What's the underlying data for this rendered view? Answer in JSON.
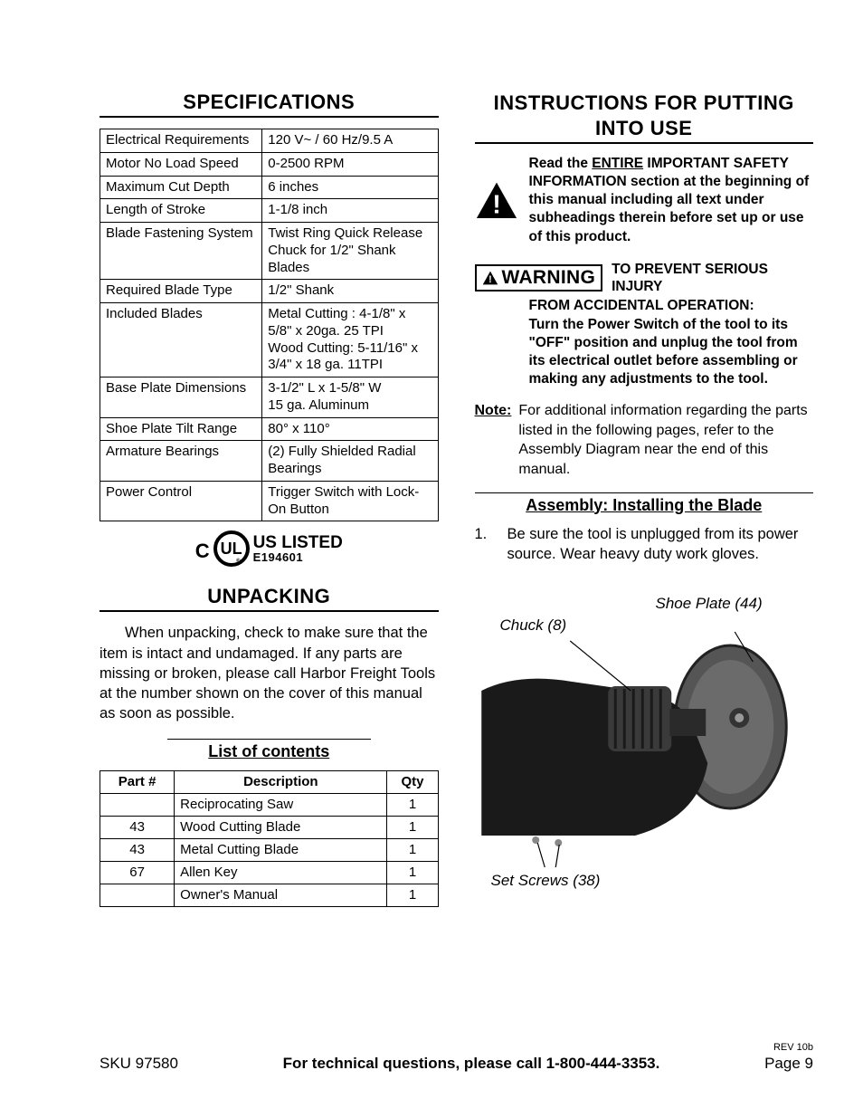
{
  "left": {
    "spec_title": "SPECIFICATIONS",
    "spec_rows": [
      {
        "k": "Electrical Requirements",
        "v": "120 V~ / 60 Hz/9.5 A"
      },
      {
        "k": "Motor No Load Speed",
        "v": "0-2500 RPM"
      },
      {
        "k": "Maximum Cut Depth",
        "v": "6 inches"
      },
      {
        "k": "Length of Stroke",
        "v": "1-1/8 inch"
      },
      {
        "k": "Blade Fastening System",
        "v": "Twist Ring Quick Release Chuck for 1/2\" Shank Blades"
      },
      {
        "k": "Required Blade Type",
        "v": "1/2\" Shank"
      },
      {
        "k": "Included Blades",
        "v": "Metal Cutting : 4-1/8\" x 5/8\" x 20ga. 25 TPI\nWood Cutting: 5-11/16\" x 3/4\" x 18 ga. 11TPI"
      },
      {
        "k": "Base Plate Dimensions",
        "v": "3-1/2\" L x 1-5/8\" W\n15 ga. Aluminum"
      },
      {
        "k": "Shoe Plate Tilt Range",
        "v": "80° x 110°"
      },
      {
        "k": "Armature Bearings",
        "v": "(2) Fully Shielded Radial Bearings"
      },
      {
        "k": "Power Control",
        "v": "Trigger Switch with Lock-On Button"
      }
    ],
    "ul": {
      "c": "C",
      "mark": "UL",
      "listed": "US LISTED",
      "num": "E194601"
    },
    "unpacking_title": "UNPACKING",
    "unpacking_body": "When unpacking, check to make sure that the item is intact and undamaged.  If any parts are missing or broken, please call Harbor Freight Tools at the number shown on the cover of this manual as soon as possible.",
    "contents_title": "List of contents",
    "contents_headers": {
      "c1": "Part #",
      "c2": "Description",
      "c3": "Qty"
    },
    "contents_rows": [
      {
        "p": "",
        "d": "Reciprocating Saw",
        "q": "1"
      },
      {
        "p": "43",
        "d": "Wood Cutting Blade",
        "q": "1"
      },
      {
        "p": "43",
        "d": "Metal Cutting Blade",
        "q": "1"
      },
      {
        "p": "67",
        "d": "Allen Key",
        "q": "1"
      },
      {
        "p": "",
        "d": "Owner's Manual",
        "q": "1"
      }
    ]
  },
  "right": {
    "instr_title": "INSTRUCTIONS FOR PUTTING INTO USE",
    "read_pre": "Read the ",
    "read_entire": "ENTIRE",
    "read_post": " IMPORTANT SAFETY INFORMATION section at the beginning of this manual including all text under subheadings therein before set up or use of this product.",
    "warn_label": "WARNING",
    "warn_lead": "TO PREVENT SERIOUS INJURY FROM ACCIDENTAL OPERATION:",
    "warn_body": "Turn the Power Switch of the tool to its \"OFF\" position and unplug the tool from its electrical outlet before assembling or making any adjustments to the tool.",
    "note_label": "Note:",
    "note_body": "For additional information regarding the parts listed in the following pages, refer to the Assembly Diagram near the end of this manual.",
    "assembly_title": "Assembly: Installing the Blade",
    "step1_num": "1.",
    "step1": "Be sure the tool is unplugged from its power source.  Wear heavy duty work gloves.",
    "fig": {
      "chuck": "Chuck (8)",
      "shoe": "Shoe Plate (44)",
      "screws": "Set Screws (38)"
    }
  },
  "footer": {
    "sku": "SKU 97580",
    "mid": "For technical questions, please call 1-800-444-3353.",
    "rev": "REV 10b",
    "page": "Page 9"
  },
  "colors": {
    "black": "#000000",
    "white": "#ffffff",
    "gray": "#6b6b6b",
    "darkgray": "#2a2a2a"
  }
}
